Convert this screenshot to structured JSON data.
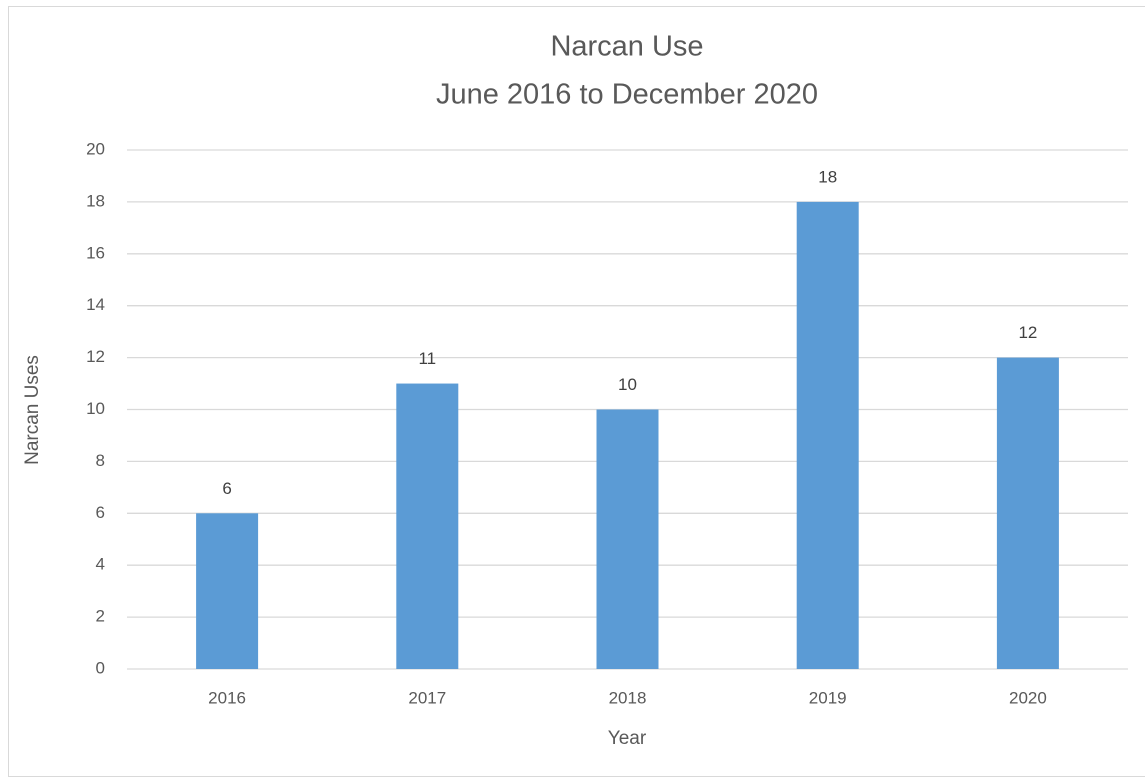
{
  "chart_data": {
    "type": "bar",
    "title": "Narcan Use",
    "subtitle": "June 2016 to December 2020",
    "x_label": "Year",
    "y_label": "Narcan Uses",
    "categories": [
      "2016",
      "2017",
      "2018",
      "2019",
      "2020"
    ],
    "values": [
      6,
      11,
      10,
      18,
      12
    ],
    "color": "#5b9bd5",
    "ylim": [
      0,
      20
    ],
    "yticks": [
      0,
      2,
      4,
      6,
      8,
      10,
      12,
      14,
      16,
      18,
      20
    ],
    "grid": true,
    "data_labels": true
  }
}
